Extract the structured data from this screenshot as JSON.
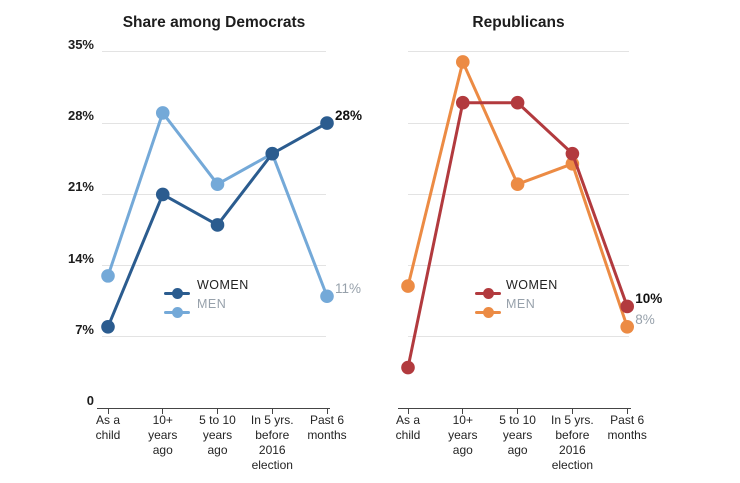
{
  "page": {
    "background": "#ffffff"
  },
  "colors": {
    "text_dark": "#1d1d1d",
    "muted_label": "#97a1ab",
    "axis": "#454545",
    "gridline": "#e3e3e3"
  },
  "chart_data": [
    {
      "type": "line",
      "title": "Share among Democrats",
      "categories": [
        "As a\nchild",
        "10+\nyears\nago",
        "5 to 10\nyears\nago",
        "In 5 yrs.\nbefore\n2016\nelection",
        "Past 6\nmonths"
      ],
      "ylim": [
        0,
        35
      ],
      "grid": true,
      "grid_values": [
        35,
        28,
        21,
        14,
        7
      ],
      "y_ticks": [
        {
          "label": "35%",
          "value": 35
        },
        {
          "label": "28%",
          "value": 28
        },
        {
          "label": "21%",
          "value": 21
        },
        {
          "label": "14%",
          "value": 14
        },
        {
          "label": "7%",
          "value": 7
        },
        {
          "label": "0",
          "value": 0
        }
      ],
      "legend_position": "inside-bottom-center",
      "series": [
        {
          "name": "WOMEN",
          "color": "#2b5c8f",
          "values": [
            8,
            21,
            18,
            25,
            28
          ],
          "end_label": "28%",
          "end_label_style": "bold-dark"
        },
        {
          "name": "MEN",
          "color": "#74a9d8",
          "values": [
            13,
            29,
            22,
            25,
            11
          ],
          "end_label": "11%",
          "end_label_style": "muted"
        }
      ]
    },
    {
      "type": "line",
      "title": "Republicans",
      "categories": [
        "As a\nchild",
        "10+\nyears\nago",
        "5 to 10\nyears\nago",
        "In 5 yrs.\nbefore\n2016\nelection",
        "Past 6\nmonths"
      ],
      "ylim": [
        0,
        35
      ],
      "grid": true,
      "grid_values": [
        35,
        28,
        21,
        14,
        7
      ],
      "y_ticks": [],
      "legend_position": "inside-bottom-center",
      "series": [
        {
          "name": "WOMEN",
          "color": "#b23a3e",
          "values": [
            4,
            30,
            30,
            25,
            10
          ],
          "end_label": "10%",
          "end_label_style": "bold-dark"
        },
        {
          "name": "MEN",
          "color": "#ec8b44",
          "values": [
            12,
            34,
            22,
            24,
            8
          ],
          "end_label": "8%",
          "end_label_style": "muted"
        }
      ]
    }
  ]
}
